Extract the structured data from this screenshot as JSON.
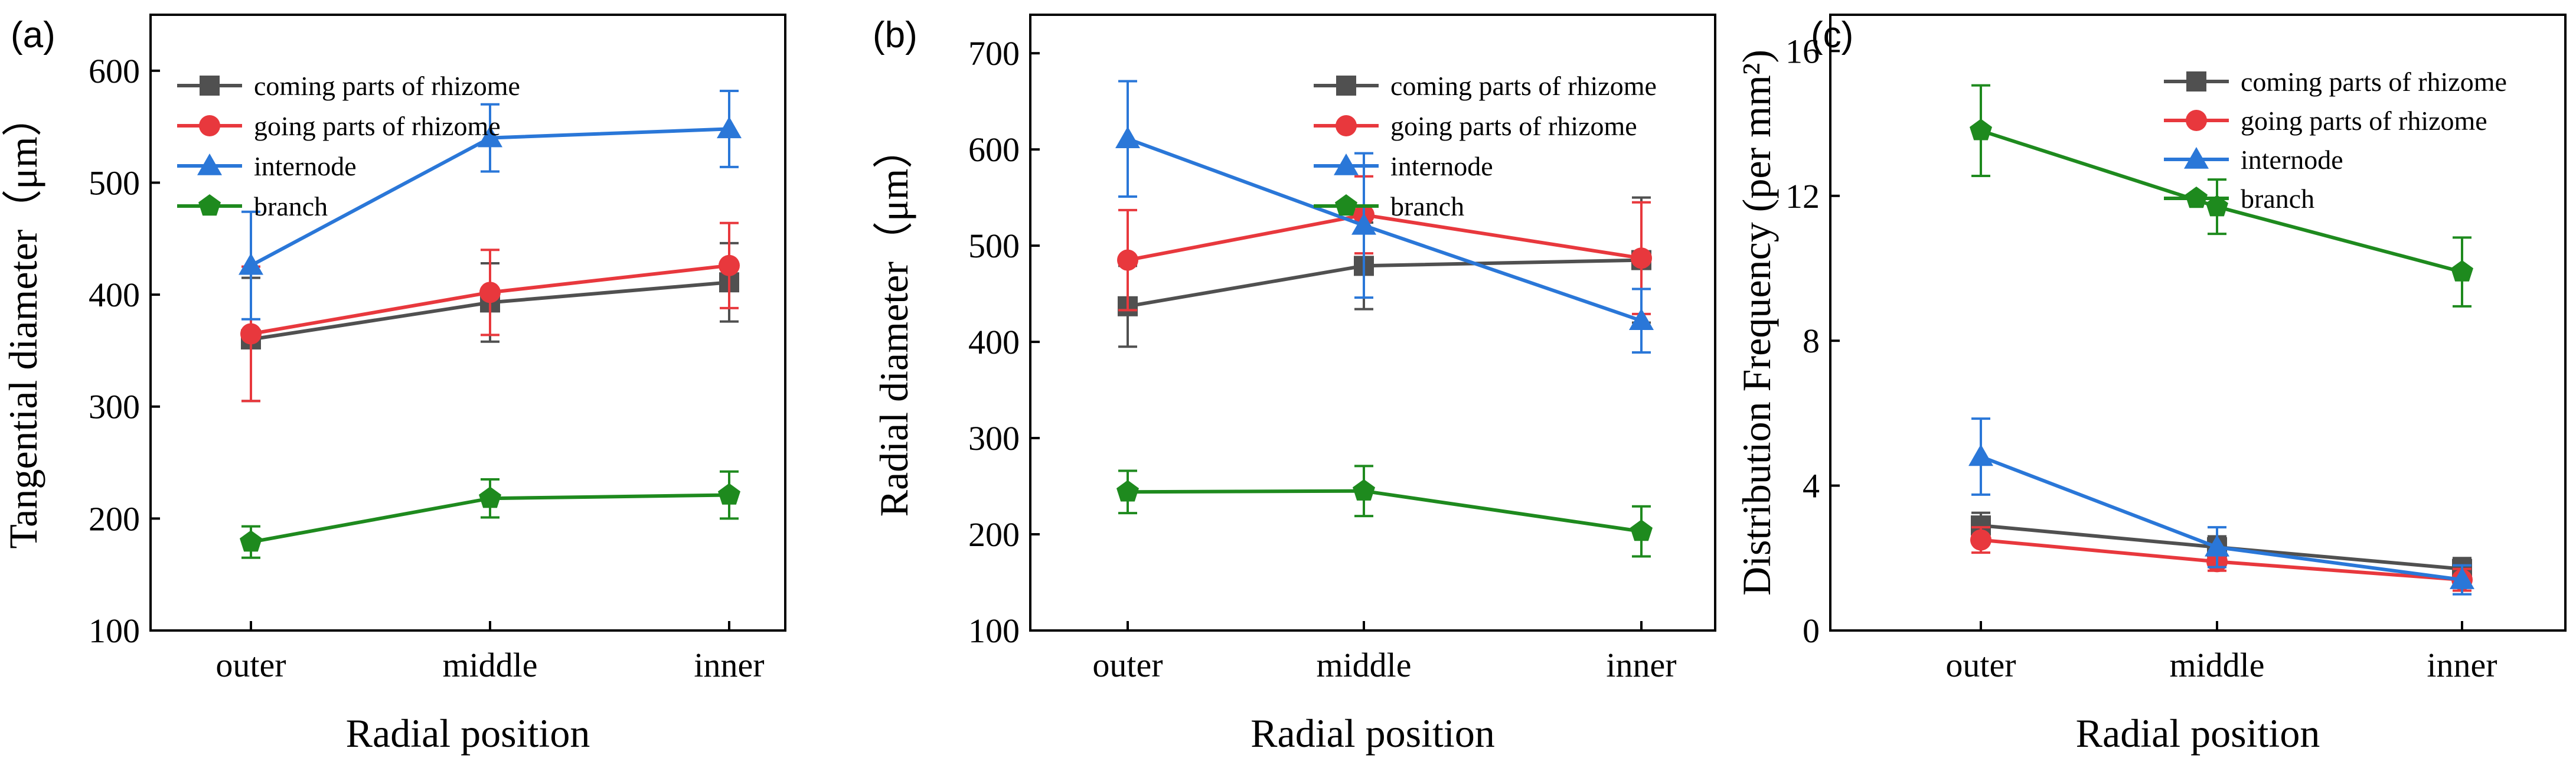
{
  "colors": {
    "coming": "#505050",
    "going": "#E8383D",
    "internode": "#2A77D8",
    "branch": "#1E8A1E"
  },
  "chart_data": [
    {
      "type": "line",
      "panel": "(a)",
      "xlabel": "Radial position",
      "ylabel": "Tangential diameter（μm）",
      "categories": [
        "outer",
        "middle",
        "inner"
      ],
      "ylim": [
        100,
        650
      ],
      "yticks": [
        100,
        200,
        300,
        400,
        500,
        600
      ],
      "legend_position": "top-left",
      "series": [
        {
          "name": "coming parts of rhizome",
          "key": "coming",
          "marker": "square",
          "values": [
            360,
            393,
            411
          ],
          "errors": [
            55,
            35,
            35
          ]
        },
        {
          "name": "going parts of rhizome",
          "key": "going",
          "marker": "circle",
          "values": [
            365,
            402,
            426
          ],
          "errors": [
            60,
            38,
            38
          ]
        },
        {
          "name": "internode",
          "key": "internode",
          "marker": "triangle",
          "values": [
            426,
            540,
            548
          ],
          "errors": [
            48,
            30,
            34
          ]
        },
        {
          "name": "branch",
          "key": "branch",
          "marker": "pentagon",
          "values": [
            179,
            218,
            221
          ],
          "errors": [
            14,
            17,
            21
          ]
        }
      ]
    },
    {
      "type": "line",
      "panel": "(b)",
      "xlabel": "Radial position",
      "ylabel": "Radial diameter（μm）",
      "categories": [
        "outer",
        "middle",
        "inner"
      ],
      "ylim": [
        100,
        740
      ],
      "yticks": [
        100,
        200,
        300,
        400,
        500,
        600,
        700
      ],
      "legend_position": "top-right",
      "series": [
        {
          "name": "coming parts of rhizome",
          "key": "coming",
          "marker": "square",
          "values": [
            437,
            479,
            485
          ],
          "errors": [
            42,
            45,
            65
          ]
        },
        {
          "name": "going parts of rhizome",
          "key": "going",
          "marker": "circle",
          "values": [
            485,
            532,
            487
          ],
          "errors": [
            52,
            40,
            58
          ]
        },
        {
          "name": "internode",
          "key": "internode",
          "marker": "triangle",
          "values": [
            611,
            521,
            422
          ],
          "errors": [
            60,
            75,
            33
          ]
        },
        {
          "name": "branch",
          "key": "branch",
          "marker": "pentagon",
          "values": [
            244,
            245,
            203
          ],
          "errors": [
            22,
            26,
            26
          ]
        }
      ]
    },
    {
      "type": "line",
      "panel": "(c)",
      "xlabel": "Radial position",
      "ylabel": "Distribution Frequency (per mm²)",
      "categories": [
        "outer",
        "middle",
        "inner"
      ],
      "ylim": [
        0,
        17
      ],
      "yticks": [
        0,
        4,
        8,
        12,
        16
      ],
      "legend_position": "top-right",
      "series": [
        {
          "name": "coming parts of rhizome",
          "key": "coming",
          "marker": "square",
          "values": [
            2.9,
            2.3,
            1.7
          ],
          "errors": [
            0.35,
            0.3,
            0.3
          ]
        },
        {
          "name": "going parts of rhizome",
          "key": "going",
          "marker": "circle",
          "values": [
            2.5,
            1.9,
            1.4
          ],
          "errors": [
            0.35,
            0.25,
            0.3
          ]
        },
        {
          "name": "internode",
          "key": "internode",
          "marker": "triangle",
          "values": [
            4.8,
            2.3,
            1.4
          ],
          "errors": [
            1.05,
            0.55,
            0.4
          ]
        },
        {
          "name": "branch",
          "key": "branch",
          "marker": "pentagon",
          "values": [
            13.8,
            11.7,
            9.9
          ],
          "errors": [
            1.25,
            0.75,
            0.95
          ]
        }
      ]
    }
  ]
}
